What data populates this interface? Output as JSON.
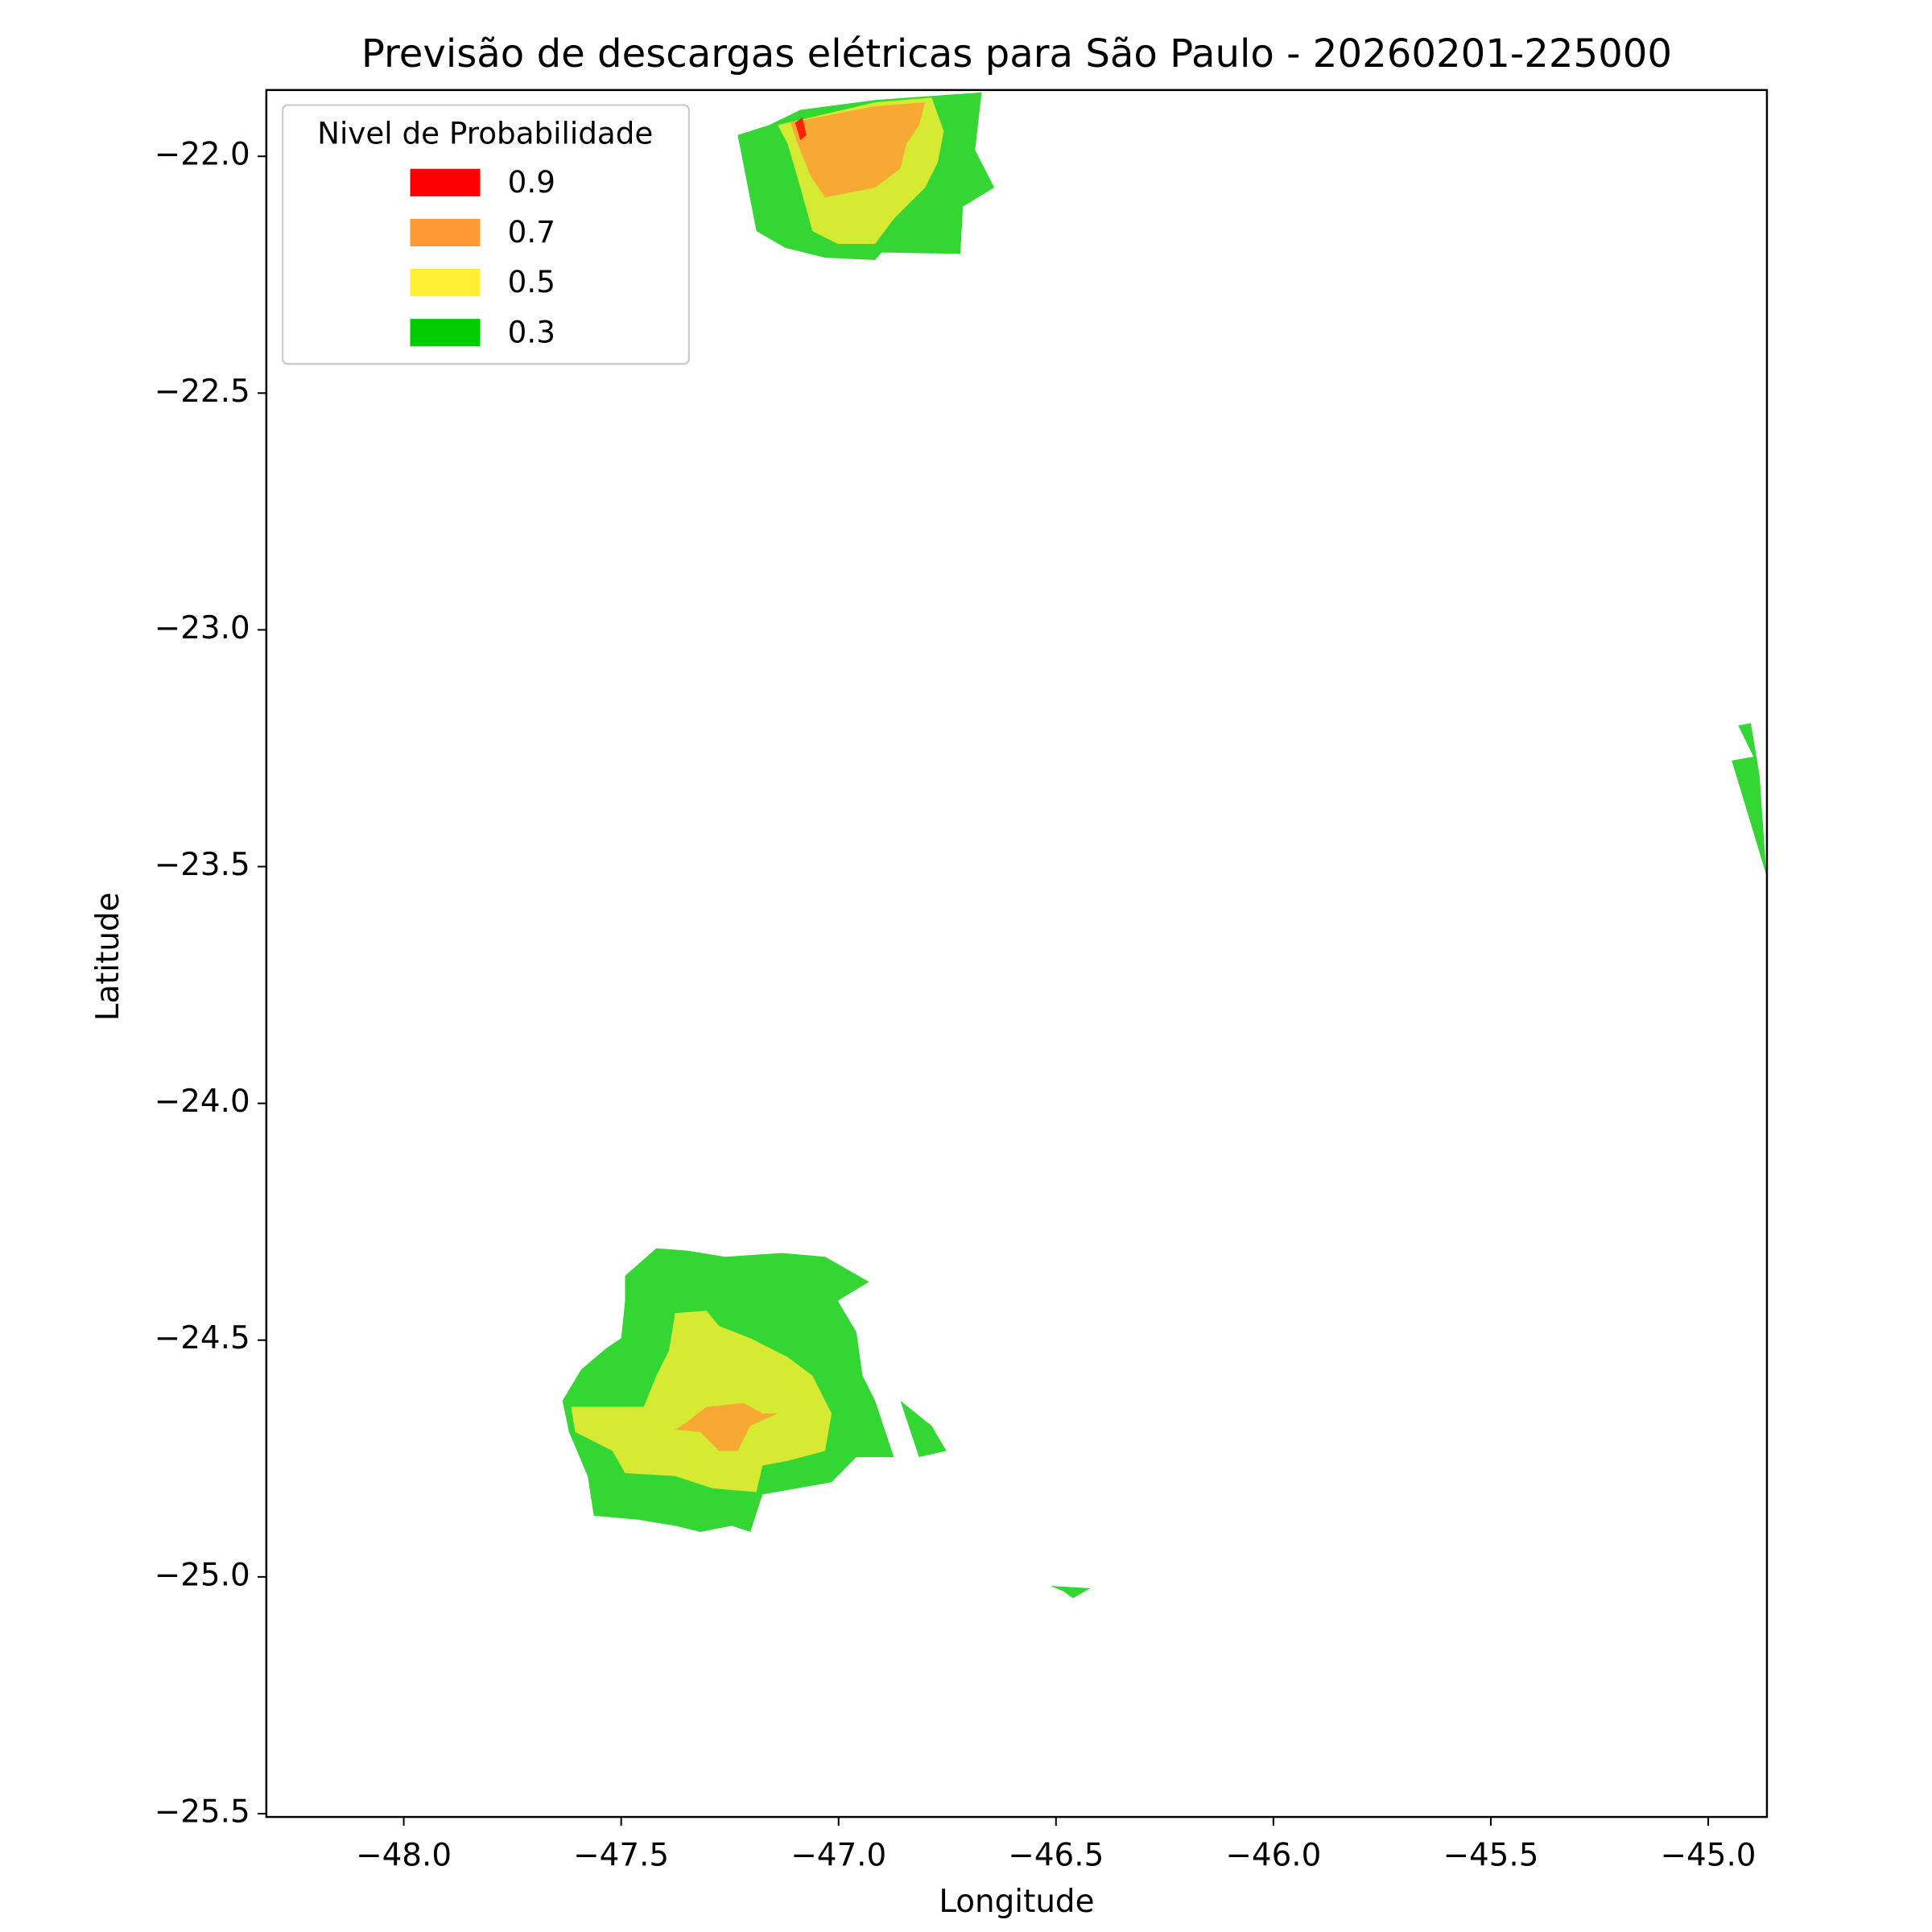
{
  "chart_data": {
    "type": "contourf",
    "title": "Previsão de descargas elétricas para São Paulo - 20260201-225000",
    "x_label": "Longitude",
    "y_label": "Latitude",
    "legend_title": "Nivel de Probabilidade",
    "legend_position": "upper left",
    "alpha": 0.8,
    "xlim": [
      -48.316,
      -44.865
    ],
    "ylim": [
      -25.507,
      -21.86
    ],
    "xticks": [
      {
        "value": -48.0,
        "label": "−48.0"
      },
      {
        "value": -47.5,
        "label": "−47.5"
      },
      {
        "value": -47.0,
        "label": "−47.0"
      },
      {
        "value": -46.5,
        "label": "−46.5"
      },
      {
        "value": -46.0,
        "label": "−46.0"
      },
      {
        "value": -45.5,
        "label": "−45.5"
      },
      {
        "value": -45.0,
        "label": "−45.0"
      }
    ],
    "yticks": [
      {
        "value": -25.5,
        "label": "−25.5"
      },
      {
        "value": -25.0,
        "label": "−25.0"
      },
      {
        "value": -24.5,
        "label": "−24.5"
      },
      {
        "value": -24.0,
        "label": "−24.0"
      },
      {
        "value": -23.5,
        "label": "−23.5"
      },
      {
        "value": -23.0,
        "label": "−23.0"
      },
      {
        "value": -22.5,
        "label": "−22.5"
      },
      {
        "value": -22.0,
        "label": "−22.0"
      }
    ],
    "series": [
      {
        "name": "0.9",
        "color": "#ff0000",
        "polygons": [
          [
            [
              -47.1,
              -21.929
            ],
            [
              -47.083,
              -21.918
            ],
            [
              -47.074,
              -21.955
            ],
            [
              -47.088,
              -21.966
            ]
          ]
        ]
      },
      {
        "name": "0.7",
        "color": "#ff9933",
        "polygons": [
          [
            [
              -47.111,
              -21.929
            ],
            [
              -46.916,
              -21.894
            ],
            [
              -46.801,
              -21.886
            ],
            [
              -46.815,
              -21.934
            ],
            [
              -46.844,
              -21.974
            ],
            [
              -46.858,
              -22.026
            ],
            [
              -46.916,
              -22.066
            ],
            [
              -47.031,
              -22.087
            ],
            [
              -47.065,
              -22.04
            ],
            [
              -47.094,
              -21.974
            ]
          ],
          [
            [
              -47.353,
              -24.676
            ],
            [
              -47.304,
              -24.641
            ],
            [
              -47.218,
              -24.633
            ],
            [
              -47.175,
              -24.655
            ],
            [
              -47.14,
              -24.655
            ],
            [
              -47.203,
              -24.681
            ],
            [
              -47.232,
              -24.734
            ],
            [
              -47.275,
              -24.734
            ],
            [
              -47.318,
              -24.694
            ],
            [
              -47.376,
              -24.689
            ]
          ]
        ]
      },
      {
        "name": "0.5",
        "color": "#ffee33",
        "polygons": [
          [
            [
              -47.14,
              -21.934
            ],
            [
              -46.916,
              -21.886
            ],
            [
              -46.786,
              -21.876
            ],
            [
              -46.758,
              -21.947
            ],
            [
              -46.772,
              -22.013
            ],
            [
              -46.801,
              -22.066
            ],
            [
              -46.873,
              -22.132
            ],
            [
              -46.916,
              -22.185
            ],
            [
              -47.002,
              -22.185
            ],
            [
              -47.06,
              -22.158
            ],
            [
              -47.088,
              -22.066
            ],
            [
              -47.117,
              -21.974
            ]
          ],
          [
            [
              -47.376,
              -24.443
            ],
            [
              -47.304,
              -24.438
            ],
            [
              -47.275,
              -24.47
            ],
            [
              -47.203,
              -24.496
            ],
            [
              -47.117,
              -24.536
            ],
            [
              -47.06,
              -24.575
            ],
            [
              -47.016,
              -24.655
            ],
            [
              -47.031,
              -24.734
            ],
            [
              -47.117,
              -24.755
            ],
            [
              -47.175,
              -24.765
            ],
            [
              -47.189,
              -24.821
            ],
            [
              -47.29,
              -24.813
            ],
            [
              -47.376,
              -24.787
            ],
            [
              -47.491,
              -24.781
            ],
            [
              -47.52,
              -24.734
            ],
            [
              -47.606,
              -24.694
            ],
            [
              -47.615,
              -24.641
            ],
            [
              -47.448,
              -24.641
            ],
            [
              -47.419,
              -24.575
            ],
            [
              -47.39,
              -24.522
            ]
          ]
        ]
      },
      {
        "name": "0.3",
        "color": "#00cc00",
        "polygons": [
          [
            [
              -47.232,
              -21.955
            ],
            [
              -47.16,
              -21.934
            ],
            [
              -47.088,
              -21.902
            ],
            [
              -46.916,
              -21.881
            ],
            [
              -46.671,
              -21.865
            ],
            [
              -46.686,
              -21.987
            ],
            [
              -46.642,
              -22.066
            ],
            [
              -46.714,
              -22.106
            ],
            [
              -46.72,
              -22.206
            ],
            [
              -46.901,
              -22.203
            ],
            [
              -46.916,
              -22.219
            ],
            [
              -47.031,
              -22.214
            ],
            [
              -47.123,
              -22.193
            ],
            [
              -47.189,
              -22.158
            ]
          ],
          [
            [
              -44.931,
              -23.202
            ],
            [
              -44.902,
              -23.197
            ],
            [
              -44.882,
              -23.307
            ],
            [
              -44.866,
              -23.519
            ],
            [
              -44.946,
              -23.276
            ],
            [
              -44.896,
              -23.268
            ]
          ],
          [
            [
              -47.491,
              -24.364
            ],
            [
              -47.419,
              -24.306
            ],
            [
              -47.347,
              -24.311
            ],
            [
              -47.261,
              -24.324
            ],
            [
              -47.131,
              -24.316
            ],
            [
              -47.031,
              -24.324
            ],
            [
              -46.93,
              -24.377
            ],
            [
              -47.002,
              -24.417
            ],
            [
              -46.959,
              -24.483
            ],
            [
              -46.945,
              -24.575
            ],
            [
              -46.916,
              -24.628
            ],
            [
              -46.873,
              -24.747
            ],
            [
              -46.959,
              -24.747
            ],
            [
              -47.016,
              -24.8
            ],
            [
              -47.175,
              -24.826
            ],
            [
              -47.203,
              -24.905
            ],
            [
              -47.246,
              -24.892
            ],
            [
              -47.318,
              -24.905
            ],
            [
              -47.376,
              -24.892
            ],
            [
              -47.462,
              -24.879
            ],
            [
              -47.563,
              -24.871
            ],
            [
              -47.577,
              -24.787
            ],
            [
              -47.62,
              -24.694
            ],
            [
              -47.635,
              -24.628
            ],
            [
              -47.592,
              -24.562
            ],
            [
              -47.534,
              -24.517
            ],
            [
              -47.5,
              -24.496
            ],
            [
              -47.491,
              -24.417
            ]
          ],
          [
            [
              -46.858,
              -24.628
            ],
            [
              -46.786,
              -24.681
            ],
            [
              -46.752,
              -24.734
            ],
            [
              -46.815,
              -24.747
            ]
          ],
          [
            [
              -46.513,
              -25.019
            ],
            [
              -46.421,
              -25.024
            ],
            [
              -46.461,
              -25.045
            ],
            [
              -46.484,
              -25.03
            ]
          ]
        ]
      }
    ]
  }
}
